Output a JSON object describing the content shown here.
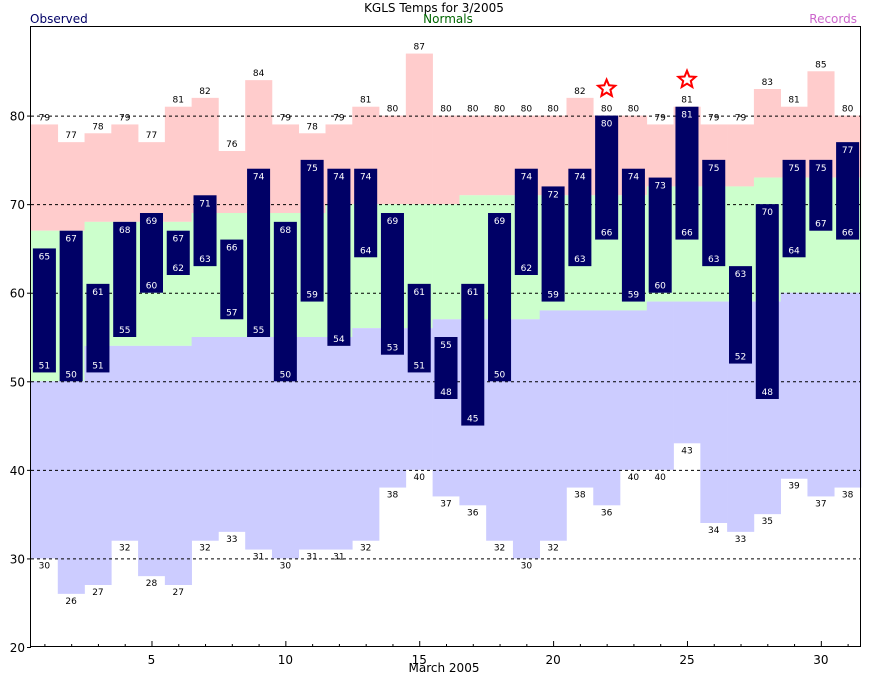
{
  "chart_data": {
    "type": "bar",
    "title": "KGLS Temps for 3/2005",
    "xlabel": "March 2005",
    "ylabel": "",
    "ylim": [
      20,
      90
    ],
    "xlim": [
      0.5,
      31.5
    ],
    "yticks": [
      20,
      30,
      40,
      50,
      60,
      70,
      80
    ],
    "xticks": [
      5,
      10,
      15,
      20,
      25,
      30
    ],
    "gridlines": [
      30,
      40,
      50,
      60,
      70,
      80
    ],
    "legend": {
      "observed": "Observed",
      "normals": "Normals",
      "records": "Records"
    },
    "colors": {
      "observed": "#000066",
      "normals_text": "#006600",
      "records_text": "#cc66cc",
      "record_high_band": "#ffcccc",
      "normal_band": "#ccffcc",
      "record_low_band": "#ccccff",
      "star": "#ff0000",
      "bar_label": "#ffffff",
      "grid": "#000000"
    },
    "days": [
      1,
      2,
      3,
      4,
      5,
      6,
      7,
      8,
      9,
      10,
      11,
      12,
      13,
      14,
      15,
      16,
      17,
      18,
      19,
      20,
      21,
      22,
      23,
      24,
      25,
      26,
      27,
      28,
      29,
      30,
      31
    ],
    "observed_high": [
      65,
      67,
      61,
      68,
      69,
      67,
      71,
      66,
      74,
      68,
      75,
      74,
      74,
      69,
      61,
      55,
      61,
      69,
      74,
      72,
      74,
      80,
      74,
      73,
      81,
      75,
      63,
      70,
      75,
      75,
      77
    ],
    "observed_low": [
      51,
      50,
      51,
      55,
      60,
      62,
      63,
      57,
      55,
      50,
      59,
      54,
      64,
      53,
      51,
      48,
      45,
      50,
      62,
      59,
      63,
      66,
      59,
      60,
      66,
      63,
      52,
      48,
      64,
      67,
      66
    ],
    "record_high": [
      79,
      77,
      78,
      79,
      77,
      81,
      82,
      76,
      84,
      79,
      78,
      79,
      81,
      80,
      87,
      80,
      80,
      80,
      80,
      80,
      82,
      80,
      80,
      79,
      81,
      79,
      79,
      83,
      81,
      85,
      80
    ],
    "record_low": [
      30,
      26,
      27,
      32,
      28,
      27,
      32,
      33,
      31,
      30,
      31,
      31,
      32,
      38,
      40,
      37,
      36,
      32,
      30,
      32,
      38,
      36,
      40,
      40,
      43,
      34,
      33,
      35,
      39,
      37,
      38
    ],
    "normal_high": [
      67,
      67,
      68,
      68,
      68,
      68,
      69,
      69,
      69,
      69,
      69,
      70,
      70,
      70,
      70,
      70,
      71,
      71,
      71,
      71,
      71,
      71,
      71,
      72,
      72,
      72,
      72,
      73,
      73,
      73,
      73
    ],
    "normal_low": [
      50,
      50,
      54,
      54,
      54,
      54,
      55,
      55,
      55,
      55,
      55,
      55,
      56,
      56,
      56,
      57,
      57,
      57,
      57,
      58,
      58,
      58,
      58,
      59,
      59,
      59,
      59,
      59,
      60,
      60,
      60
    ],
    "record_set_days": [
      22,
      25
    ]
  }
}
